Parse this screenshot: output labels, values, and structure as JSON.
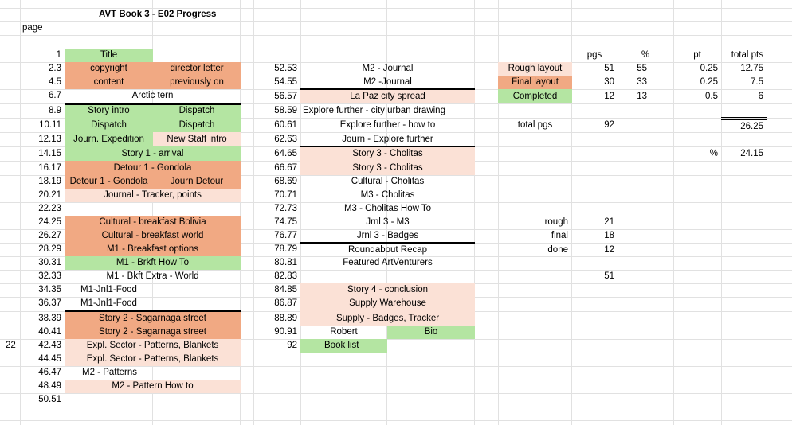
{
  "colors": {
    "green": "#b4e5a2",
    "orange": "#f1a983",
    "peach": "#fbe1d6",
    "grid": "#e1e1e1"
  },
  "sheet": {
    "title": "AVT Book 3 - E02 Progress",
    "page_label": "page",
    "row_22_label": "22"
  },
  "pages": [
    {
      "n": "1"
    },
    {
      "n": "2.3"
    },
    {
      "n": "4.5"
    },
    {
      "n": "6.7"
    },
    {
      "n": "8.9"
    },
    {
      "n": "10.11"
    },
    {
      "n": "12.13"
    },
    {
      "n": "14.15"
    },
    {
      "n": "16.17"
    },
    {
      "n": "18.19"
    },
    {
      "n": "20.21"
    },
    {
      "n": "22.23"
    },
    {
      "n": "24.25"
    },
    {
      "n": "26.27"
    },
    {
      "n": "28.29"
    },
    {
      "n": "30.31"
    },
    {
      "n": "32.33"
    },
    {
      "n": "34.35"
    },
    {
      "n": "36.37"
    },
    {
      "n": "38.39"
    },
    {
      "n": "40.41"
    },
    {
      "n": "42.43"
    },
    {
      "n": "44.45"
    },
    {
      "n": "46.47"
    },
    {
      "n": "48.49"
    },
    {
      "n": "50.51"
    }
  ],
  "left_entries": [
    "Title",
    "copyright",
    "director letter",
    "content",
    "previously on",
    "Arctic tern",
    "Story intro",
    "Dispatch",
    "Dispatch",
    "Dispatch",
    "Journ. Expedition",
    "New Staff intro",
    "Story 1 - arrival",
    "Detour 1 - Gondola",
    "Detour 1 - Gondola",
    "Journ Detour",
    "Journal - Tracker, points",
    "Cultural - breakfast Bolivia",
    "Cultural - breakfast world",
    "M1 - Breakfast options",
    "M1 - Brkft How To",
    "M1 - Bkft Extra - World",
    "M1-Jnl1-Food",
    "M1-Jnl1-Food",
    "Story 2 - Sagarnaga street",
    "Story 2 - Sagarnaga street",
    "Expl. Sector - Patterns, Blankets",
    "Expl. Sector - Patterns, Blankets",
    "M2 - Patterns",
    "M2 - Pattern How to"
  ],
  "mid_pages": [
    "52.53",
    "54.55",
    "56.57",
    "58.59",
    "60.61",
    "62.63",
    "64.65",
    "66.67",
    "68.69",
    "70.71",
    "72.73",
    "74.75",
    "76.77",
    "78.79",
    "80.81",
    "82.83",
    "84.85",
    "86.87",
    "88.89",
    "90.91",
    "92"
  ],
  "mid_entries": [
    "M2 - Journal",
    "M2 -Journal",
    "La Paz city spread",
    "Explore further - city urban drawing",
    "Explore further - how to",
    "Journ - Explore further",
    "Story 3 - Cholitas",
    "Story 3 - Cholitas",
    "Cultural - Cholitas",
    "M3 - Cholitas",
    "M3 - Cholitas How To",
    "Jrnl 3 - M3",
    "Jrnl 3 - Badges",
    "Roundabout Recap",
    "Featured ArtVenturers",
    "",
    "Story 4 - conclusion",
    "Supply Warehouse",
    "Supply - Badges, Tracker",
    "Robert",
    "Bio",
    "Book list"
  ],
  "stats": {
    "headers": {
      "pgs": "pgs",
      "pct": "%",
      "pt": "pt",
      "total_pts": "total pts"
    },
    "rows": [
      {
        "label": "Rough layout",
        "pgs": "51",
        "pct": "55",
        "pt": "0.25",
        "total": "12.75"
      },
      {
        "label": "Final layout",
        "pgs": "30",
        "pct": "33",
        "pt": "0.25",
        "total": "7.5"
      },
      {
        "label": "Completed",
        "pgs": "12",
        "pct": "13",
        "pt": "0.5",
        "total": "6"
      }
    ],
    "total_pgs_label": "total pgs",
    "total_pgs": "92",
    "sum_total": "26.25",
    "pct_label": "%",
    "pct_value": "24.15",
    "breakdown": [
      {
        "label": "rough",
        "value": "21"
      },
      {
        "label": "final",
        "value": "18"
      },
      {
        "label": "done",
        "value": "12"
      }
    ],
    "breakdown_sum": "51"
  }
}
